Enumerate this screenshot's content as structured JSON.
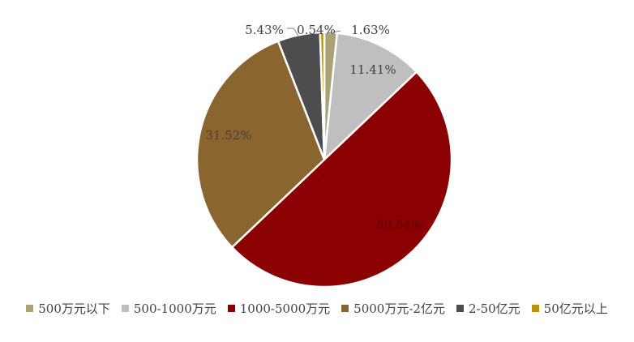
{
  "chart_data": {
    "type": "pie",
    "categories": [
      "500万元以下",
      "500-1000万元",
      "1000-5000万元",
      "5000万元-2亿元",
      "2-50亿元",
      "50亿元以上"
    ],
    "values": [
      1.63,
      11.41,
      50.54,
      31.52,
      5.43,
      0.54
    ],
    "labels": [
      "1.63%",
      "11.41%",
      "50.54%",
      "31.52%",
      "5.43%",
      "0.54%"
    ],
    "colors": [
      "#A9A275",
      "#BFBFBF",
      "#8B0000",
      "#8B6530",
      "#4D4D4F",
      "#B8920A"
    ],
    "legend_position": "bottom",
    "title": ""
  }
}
